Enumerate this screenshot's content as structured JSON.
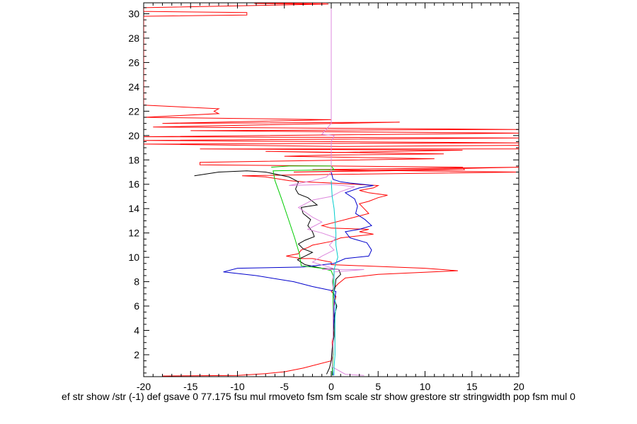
{
  "chart_data": {
    "type": "line",
    "title": "",
    "xlabel": "ef str show /str (-1) def gsave 0 77.175 fsu mul rmoveto fsm fsm scale str show grestore str stringwidth pop fsm mul 0",
    "ylabel": "",
    "xlim": [
      -20,
      20
    ],
    "ylim": [
      0.2,
      30.9
    ],
    "xticks": [
      -20,
      -15,
      -10,
      -5,
      0,
      5,
      10,
      15,
      20
    ],
    "yticks": [
      2,
      4,
      6,
      8,
      10,
      12,
      14,
      16,
      18,
      20,
      22,
      24,
      26,
      28,
      30
    ],
    "grid": false,
    "legend": "none",
    "series": [
      {
        "color": "#ff0000",
        "points": [
          [
            -0.5,
            30.9
          ],
          [
            -8.2,
            30.85
          ],
          [
            -0.3,
            30.8
          ],
          [
            -20,
            30.5
          ],
          [
            -20,
            30.2
          ],
          [
            -9.0,
            30.1
          ],
          [
            -9.0,
            29.9
          ],
          [
            -20,
            29.8
          ],
          [
            -20,
            22.5
          ],
          [
            -12,
            22.2
          ],
          [
            -12.5,
            22.0
          ],
          [
            -12,
            21.8
          ],
          [
            -20,
            21.5
          ],
          [
            0,
            21.3
          ],
          [
            -18,
            21.0
          ],
          [
            7.3,
            21.1
          ],
          [
            -19,
            20.7
          ],
          [
            20,
            20.5
          ],
          [
            -15,
            20.4
          ],
          [
            20,
            20.2
          ],
          [
            -20,
            19.9
          ],
          [
            20,
            19.8
          ],
          [
            -20,
            19.6
          ],
          [
            20,
            19.4
          ],
          [
            -20,
            19.3
          ],
          [
            1,
            19.1
          ],
          [
            20,
            19.2
          ],
          [
            20,
            18.9
          ],
          [
            -14,
            18.9
          ],
          [
            14,
            18.8
          ],
          [
            0,
            18.6
          ],
          [
            -7,
            18.7
          ],
          [
            12,
            18.5
          ],
          [
            0,
            18.4
          ],
          [
            -5,
            18.3
          ],
          [
            11,
            18.1
          ],
          [
            -14,
            17.8
          ],
          [
            -14,
            17.6
          ],
          [
            14,
            17.4
          ],
          [
            14.2,
            17.2
          ],
          [
            -4,
            17.0
          ],
          [
            20,
            17.4
          ],
          [
            -2,
            17.2
          ],
          [
            20,
            17.0
          ],
          [
            -1,
            16.8
          ],
          [
            -9.5,
            16.7
          ],
          [
            -7,
            16.6
          ],
          [
            -4.5,
            16.3
          ],
          [
            -3,
            16.2
          ],
          [
            0,
            16.1
          ],
          [
            5,
            15.9
          ],
          [
            4.5,
            15.7
          ],
          [
            3,
            15.5
          ],
          [
            4,
            15.3
          ],
          [
            6,
            15.1
          ],
          [
            5,
            14.9
          ],
          [
            4,
            14.6
          ],
          [
            3,
            14.4
          ],
          [
            3.5,
            14.0
          ],
          [
            4,
            13.6
          ],
          [
            2,
            13.2
          ],
          [
            0.5,
            12.9
          ],
          [
            -1,
            12.6
          ],
          [
            0,
            12.4
          ],
          [
            4,
            12.3
          ],
          [
            3,
            12.1
          ],
          [
            4.5,
            11.9
          ],
          [
            1,
            11.6
          ],
          [
            0,
            11.3
          ],
          [
            -2,
            11.0
          ],
          [
            -2.5,
            10.8
          ],
          [
            -3.2,
            10.6
          ],
          [
            -3.5,
            10.3
          ],
          [
            -4.8,
            10.1
          ],
          [
            -3.2,
            9.9
          ],
          [
            -2,
            9.9
          ],
          [
            0,
            9.6
          ],
          [
            0,
            9.4
          ],
          [
            10,
            9.1
          ],
          [
            13.5,
            8.9
          ],
          [
            5,
            8.6
          ],
          [
            1.5,
            8.3
          ],
          [
            0.7,
            7.8
          ],
          [
            0,
            7.2
          ],
          [
            0.5,
            6.8
          ],
          [
            0.3,
            6.0
          ],
          [
            0.2,
            5.0
          ],
          [
            0.3,
            4.0
          ],
          [
            0.1,
            3.0
          ],
          [
            0.2,
            2.0
          ],
          [
            0,
            1.5
          ],
          [
            -3,
            0.9
          ],
          [
            -5,
            0.6
          ],
          [
            -7,
            0.45
          ],
          [
            -10,
            0.3
          ],
          [
            -18,
            0.25
          ]
        ]
      },
      {
        "color": "#000000",
        "points": [
          [
            -14.6,
            16.7
          ],
          [
            -12,
            17.0
          ],
          [
            -9,
            17.1
          ],
          [
            -7,
            17.0
          ],
          [
            -4.5,
            16.6
          ],
          [
            -3.5,
            16.2
          ],
          [
            -3.8,
            15.6
          ],
          [
            -3.5,
            15.2
          ],
          [
            -2.5,
            14.9
          ],
          [
            -1.5,
            14.3
          ],
          [
            -3.2,
            14.1
          ],
          [
            -3.0,
            13.6
          ],
          [
            -2.2,
            13.1
          ],
          [
            -2.5,
            12.6
          ],
          [
            -2.0,
            12.1
          ],
          [
            -1.8,
            11.7
          ],
          [
            -2.8,
            11.4
          ],
          [
            -3.5,
            11.1
          ],
          [
            -3.0,
            10.7
          ],
          [
            -2.0,
            10.4
          ],
          [
            -2.8,
            10.1
          ],
          [
            -3.6,
            9.8
          ],
          [
            -2.8,
            9.4
          ],
          [
            -1.0,
            9.1
          ],
          [
            0.8,
            9.0
          ],
          [
            1.0,
            8.6
          ],
          [
            0.5,
            8.2
          ],
          [
            0.4,
            7.5
          ],
          [
            0.2,
            6.8
          ],
          [
            0.6,
            6.0
          ],
          [
            0.4,
            5.4
          ],
          [
            0.3,
            4.5
          ],
          [
            0.3,
            3.5
          ],
          [
            0.1,
            2.5
          ],
          [
            0,
            1.5
          ],
          [
            -0.2,
            0.9
          ],
          [
            -0.5,
            0.4
          ]
        ]
      },
      {
        "color": "#0000cc",
        "points": [
          [
            0,
            17.0
          ],
          [
            0.2,
            16.4
          ],
          [
            1,
            16.2
          ],
          [
            2,
            16.1
          ],
          [
            4.5,
            15.9
          ],
          [
            3,
            15.7
          ],
          [
            1.5,
            15.3
          ],
          [
            2.5,
            14.8
          ],
          [
            2.8,
            14.2
          ],
          [
            2.6,
            13.6
          ],
          [
            3.6,
            13.1
          ],
          [
            4.3,
            12.6
          ],
          [
            3.0,
            12.3
          ],
          [
            1.5,
            12.1
          ],
          [
            2.0,
            11.6
          ],
          [
            3.8,
            11.2
          ],
          [
            4.3,
            10.6
          ],
          [
            4.0,
            10.1
          ],
          [
            1.5,
            9.9
          ],
          [
            0.3,
            9.5
          ],
          [
            -3,
            9.2
          ],
          [
            -10,
            9.1
          ],
          [
            -11.5,
            8.8
          ],
          [
            -8,
            8.5
          ],
          [
            -4,
            8.0
          ],
          [
            -2,
            7.6
          ],
          [
            0.5,
            7.2
          ],
          [
            0.3,
            6.2
          ],
          [
            0.3,
            5.0
          ],
          [
            0.2,
            4.0
          ],
          [
            0.2,
            3.0
          ],
          [
            0.2,
            2.0
          ],
          [
            0.1,
            1.0
          ],
          [
            0.2,
            0.3
          ]
        ]
      },
      {
        "color": "#00cc00",
        "points": [
          [
            -6.4,
            17.4
          ],
          [
            -4.5,
            17.5
          ],
          [
            -2,
            17.5
          ],
          [
            0,
            17.5
          ],
          [
            0.3,
            17.2
          ],
          [
            -6.2,
            17.1
          ],
          [
            -6.0,
            16.3
          ],
          [
            -5.3,
            14.8
          ],
          [
            -4.6,
            13.2
          ],
          [
            -3.9,
            11.6
          ],
          [
            -3.4,
            10.3
          ],
          [
            -3.2,
            9.3
          ],
          [
            -1.0,
            9.1
          ],
          [
            0,
            8.9
          ],
          [
            0.2,
            8.5
          ],
          [
            0.2,
            7.5
          ],
          [
            0.2,
            6.0
          ],
          [
            0.2,
            4.0
          ],
          [
            0.2,
            2.0
          ],
          [
            0.1,
            0.3
          ]
        ]
      },
      {
        "color": "#dd88dd",
        "points": [
          [
            0,
            30.9
          ],
          [
            0,
            25.0
          ],
          [
            0,
            21.0
          ],
          [
            -1,
            20.1
          ],
          [
            0.3,
            20.0
          ],
          [
            0,
            19.5
          ],
          [
            0,
            18.0
          ],
          [
            0,
            17.0
          ],
          [
            -0.5,
            16.6
          ],
          [
            -2,
            16.3
          ],
          [
            -4.5,
            15.9
          ],
          [
            0,
            16.0
          ],
          [
            2.5,
            15.8
          ],
          [
            1.0,
            15.4
          ],
          [
            0,
            15.0
          ],
          [
            -2,
            14.7
          ],
          [
            -3.5,
            14.1
          ],
          [
            -2,
            13.3
          ],
          [
            -1,
            12.9
          ],
          [
            -2.5,
            12.3
          ],
          [
            -1,
            12.0
          ],
          [
            0.5,
            11.6
          ],
          [
            -0.2,
            11.0
          ],
          [
            0.3,
            10.6
          ],
          [
            -1,
            10.1
          ],
          [
            -2,
            9.6
          ],
          [
            0.2,
            9.1
          ],
          [
            -1,
            9.0
          ],
          [
            3.5,
            9.0
          ],
          [
            0.3,
            8.8
          ],
          [
            0.1,
            8.0
          ],
          [
            0.3,
            7.0
          ],
          [
            0.2,
            5.0
          ],
          [
            0.2,
            3.0
          ],
          [
            0.1,
            1.0
          ],
          [
            1.5,
            0.4
          ],
          [
            3.5,
            0.3
          ]
        ]
      },
      {
        "color": "#00cccc",
        "points": [
          [
            0,
            16.3
          ],
          [
            0.1,
            15.0
          ],
          [
            0.3,
            14.0
          ],
          [
            0.4,
            13.0
          ],
          [
            0.5,
            12.0
          ],
          [
            0.5,
            11.0
          ],
          [
            0.7,
            10.0
          ],
          [
            0.5,
            9.5
          ],
          [
            0.3,
            9.0
          ],
          [
            0.3,
            8.0
          ],
          [
            0.3,
            7.0
          ],
          [
            0.5,
            6.0
          ],
          [
            0.4,
            5.0
          ],
          [
            0.4,
            4.0
          ],
          [
            0.4,
            3.0
          ],
          [
            0.4,
            2.0
          ],
          [
            0.3,
            1.0
          ],
          [
            0.3,
            0.3
          ]
        ]
      }
    ]
  }
}
